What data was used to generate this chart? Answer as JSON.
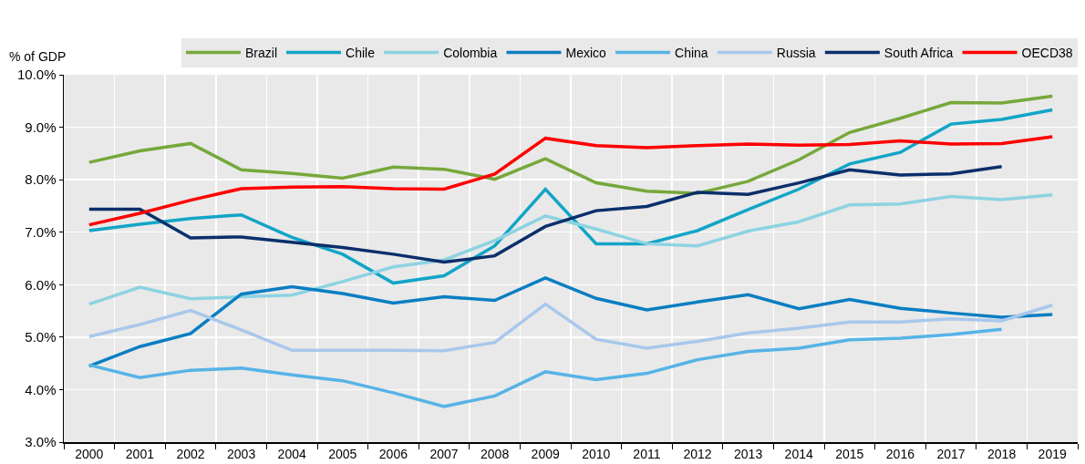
{
  "chart_data": {
    "type": "line",
    "ylabel": "% of GDP",
    "categories": [
      "2000",
      "2001",
      "2002",
      "2003",
      "2004",
      "2005",
      "2006",
      "2007",
      "2008",
      "2009",
      "2010",
      "2011",
      "2012",
      "2013",
      "2014",
      "2015",
      "2016",
      "2017",
      "2018",
      "2019"
    ],
    "series": [
      {
        "name": "Brazil",
        "color": "#76a83b",
        "values": [
          8.33,
          8.55,
          8.69,
          8.19,
          8.12,
          8.03,
          8.24,
          8.2,
          8.01,
          8.4,
          7.94,
          7.78,
          7.74,
          7.97,
          8.38,
          8.9,
          9.17,
          9.47,
          9.46,
          9.59
        ]
      },
      {
        "name": "Chile",
        "color": "#12a5c7",
        "values": [
          7.03,
          7.15,
          7.26,
          7.33,
          6.9,
          6.58,
          6.03,
          6.17,
          6.74,
          7.82,
          6.78,
          6.78,
          7.03,
          7.43,
          7.82,
          8.3,
          8.52,
          9.06,
          9.15,
          9.33
        ]
      },
      {
        "name": "Colombia",
        "color": "#8dd3e2",
        "values": [
          5.63,
          5.95,
          5.73,
          5.77,
          5.8,
          6.06,
          6.34,
          6.47,
          6.84,
          7.31,
          7.06,
          6.78,
          6.74,
          7.02,
          7.2,
          7.52,
          7.54,
          7.68,
          7.62,
          7.71
        ]
      },
      {
        "name": "Mexico",
        "color": "#0a7ec2",
        "values": [
          4.45,
          4.82,
          5.07,
          5.82,
          5.96,
          5.83,
          5.65,
          5.77,
          5.7,
          6.13,
          5.74,
          5.52,
          5.67,
          5.81,
          5.54,
          5.72,
          5.55,
          5.46,
          5.38,
          5.43
        ]
      },
      {
        "name": "China",
        "color": "#56b3e6",
        "values": [
          4.47,
          4.23,
          4.37,
          4.41,
          4.28,
          4.17,
          3.94,
          3.68,
          3.88,
          4.34,
          4.19,
          4.31,
          4.57,
          4.73,
          4.79,
          4.95,
          4.98,
          5.05,
          5.15,
          null
        ]
      },
      {
        "name": "Russia",
        "color": "#a8c8ec",
        "values": [
          5.01,
          5.24,
          5.51,
          5.14,
          4.75,
          4.75,
          4.75,
          4.74,
          4.9,
          5.63,
          4.96,
          4.79,
          4.92,
          5.08,
          5.17,
          5.29,
          5.29,
          5.35,
          5.31,
          5.61
        ]
      },
      {
        "name": "South Africa",
        "color": "#0b2f6b",
        "values": [
          7.44,
          7.44,
          6.89,
          6.91,
          6.81,
          6.71,
          6.58,
          6.43,
          6.55,
          7.11,
          7.41,
          7.49,
          7.76,
          7.72,
          7.94,
          8.19,
          8.09,
          8.11,
          8.25,
          null
        ]
      },
      {
        "name": "OECD38",
        "color": "#ff0000",
        "values": [
          7.14,
          7.36,
          7.61,
          7.83,
          7.86,
          7.87,
          7.83,
          7.82,
          8.11,
          8.79,
          8.65,
          8.61,
          8.65,
          8.68,
          8.66,
          8.67,
          8.74,
          8.68,
          8.69,
          8.82
        ]
      }
    ],
    "ylim": [
      3,
      10
    ],
    "yticks": [
      {
        "value": 3,
        "label": "3.0%"
      },
      {
        "value": 4,
        "label": "4.0%"
      },
      {
        "value": 5,
        "label": "5.0%"
      },
      {
        "value": 6,
        "label": "6.0%"
      },
      {
        "value": 7,
        "label": "7.0%"
      },
      {
        "value": 8,
        "label": "8.0%"
      },
      {
        "value": 9,
        "label": "9.0%"
      },
      {
        "value": 10,
        "label": "10.0%"
      }
    ],
    "grid": true,
    "legend": "top",
    "marker": "none",
    "line_style": "solid"
  }
}
